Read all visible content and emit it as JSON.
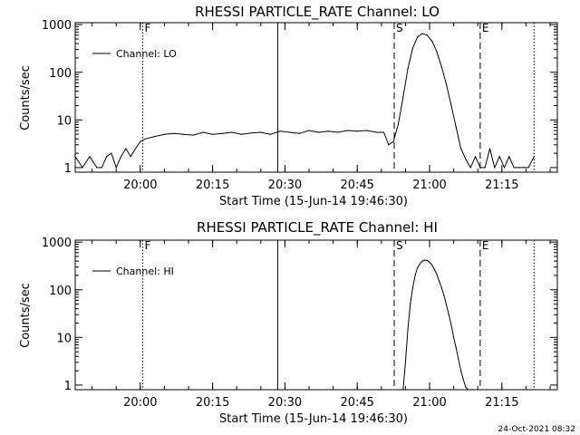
{
  "footer_timestamp": "24-Oct-2021 08:32",
  "chart_data": [
    {
      "type": "line",
      "title": "RHESSI PARTICLE_RATE Channel: LO",
      "xlabel": "Start Time (15-Jun-14 19:46:30)",
      "ylabel": "Counts/sec",
      "yscale": "log",
      "xlim": [
        "19:46:30",
        "21:26:30"
      ],
      "ylim": [
        0.8,
        1100
      ],
      "x_ticks": [
        "20:00",
        "20:15",
        "20:30",
        "20:45",
        "21:00",
        "21:15"
      ],
      "y_ticks": [
        "1",
        "10",
        "100",
        "1000"
      ],
      "legend": {
        "position": "top-left",
        "entries": [
          "Channel: LO"
        ]
      },
      "markers": [
        {
          "type": "dotted",
          "time": "20:00:30",
          "label": "F"
        },
        {
          "type": "solid",
          "time": "20:28:30",
          "label": ""
        },
        {
          "type": "dashed",
          "time": "20:52:40",
          "label": "S"
        },
        {
          "type": "dashed",
          "time": "21:10:30",
          "label": "E"
        },
        {
          "type": "dotted",
          "time": "21:21:40",
          "label": ""
        }
      ],
      "series": [
        {
          "name": "Channel: LO",
          "x": [
            "19:46:30",
            "19:48:00",
            "19:49:30",
            "19:51:00",
            "19:52:00",
            "19:53:00",
            "19:54:00",
            "19:55:00",
            "19:56:00",
            "19:57:00",
            "19:58:00",
            "19:59:00",
            "20:00:00",
            "20:01:00",
            "20:03:00",
            "20:05:00",
            "20:07:00",
            "20:09:00",
            "20:11:00",
            "20:13:00",
            "20:15:00",
            "20:17:00",
            "20:19:00",
            "20:21:00",
            "20:23:00",
            "20:25:00",
            "20:27:00",
            "20:29:00",
            "20:31:00",
            "20:33:00",
            "20:35:00",
            "20:37:00",
            "20:39:00",
            "20:41:00",
            "20:43:00",
            "20:45:00",
            "20:47:00",
            "20:49:00",
            "20:50:30",
            "20:51:30",
            "20:52:30",
            "20:53:30",
            "20:54:30",
            "20:55:30",
            "20:56:30",
            "20:57:30",
            "20:58:30",
            "20:59:30",
            "21:00:30",
            "21:01:30",
            "21:02:30",
            "21:03:30",
            "21:04:30",
            "21:05:30",
            "21:06:30",
            "21:07:30",
            "21:08:30",
            "21:09:30",
            "21:10:30",
            "21:11:30",
            "21:12:30",
            "21:13:30",
            "21:14:30",
            "21:15:30",
            "21:16:30",
            "21:17:30",
            "21:18:30",
            "21:19:30",
            "21:20:30",
            "21:21:40"
          ],
          "values": [
            1.7,
            1,
            1.7,
            1,
            1,
            1.7,
            2,
            1,
            1.7,
            2.5,
            1.7,
            2.5,
            3.5,
            4,
            4.5,
            5,
            5.2,
            5,
            4.8,
            5.5,
            5,
            5.2,
            5.5,
            5,
            5.3,
            5.5,
            5,
            5.8,
            5.5,
            5.2,
            6,
            5.5,
            5.8,
            5.5,
            6,
            5.8,
            6,
            5.5,
            5.5,
            3,
            3.5,
            8,
            30,
            120,
            320,
            550,
            650,
            600,
            450,
            270,
            130,
            55,
            20,
            7,
            2.5,
            1.5,
            1,
            1.7,
            1,
            1,
            2.5,
            1,
            1.7,
            1,
            1.7,
            1,
            1,
            1,
            1,
            1.7
          ]
        }
      ]
    },
    {
      "type": "line",
      "title": "RHESSI PARTICLE_RATE Channel: HI",
      "xlabel": "Start Time (15-Jun-14 19:46:30)",
      "ylabel": "Counts/sec",
      "yscale": "log",
      "xlim": [
        "19:46:30",
        "21:26:30"
      ],
      "ylim": [
        0.8,
        1100
      ],
      "x_ticks": [
        "20:00",
        "20:15",
        "20:30",
        "20:45",
        "21:00",
        "21:15"
      ],
      "y_ticks": [
        "1",
        "10",
        "100",
        "1000"
      ],
      "legend": {
        "position": "top-left",
        "entries": [
          "Channel: HI"
        ]
      },
      "markers": [
        {
          "type": "dotted",
          "time": "20:00:30",
          "label": "F"
        },
        {
          "type": "solid",
          "time": "20:28:30",
          "label": ""
        },
        {
          "type": "dashed",
          "time": "20:52:40",
          "label": "S"
        },
        {
          "type": "dashed",
          "time": "21:10:30",
          "label": "E"
        },
        {
          "type": "dotted",
          "time": "21:21:40",
          "label": ""
        }
      ],
      "series": [
        {
          "name": "Channel: HI",
          "x": [
            "20:54:30",
            "20:55:00",
            "20:55:30",
            "20:56:00",
            "20:56:30",
            "20:57:00",
            "20:57:30",
            "20:58:00",
            "20:58:30",
            "20:59:00",
            "20:59:30",
            "21:00:00",
            "21:00:30",
            "21:01:00",
            "21:01:30",
            "21:02:00",
            "21:02:30",
            "21:03:00",
            "21:03:30",
            "21:04:00",
            "21:04:30",
            "21:05:00",
            "21:05:30",
            "21:06:00",
            "21:06:30",
            "21:07:00",
            "21:07:30",
            "21:08:00",
            "21:08:30"
          ],
          "values": [
            0.8,
            3,
            15,
            50,
            110,
            200,
            290,
            350,
            400,
            420,
            410,
            380,
            330,
            270,
            210,
            150,
            110,
            75,
            48,
            30,
            18,
            10,
            6,
            3.5,
            2,
            1.3,
            0.9,
            0.8,
            0.8
          ]
        }
      ]
    }
  ]
}
